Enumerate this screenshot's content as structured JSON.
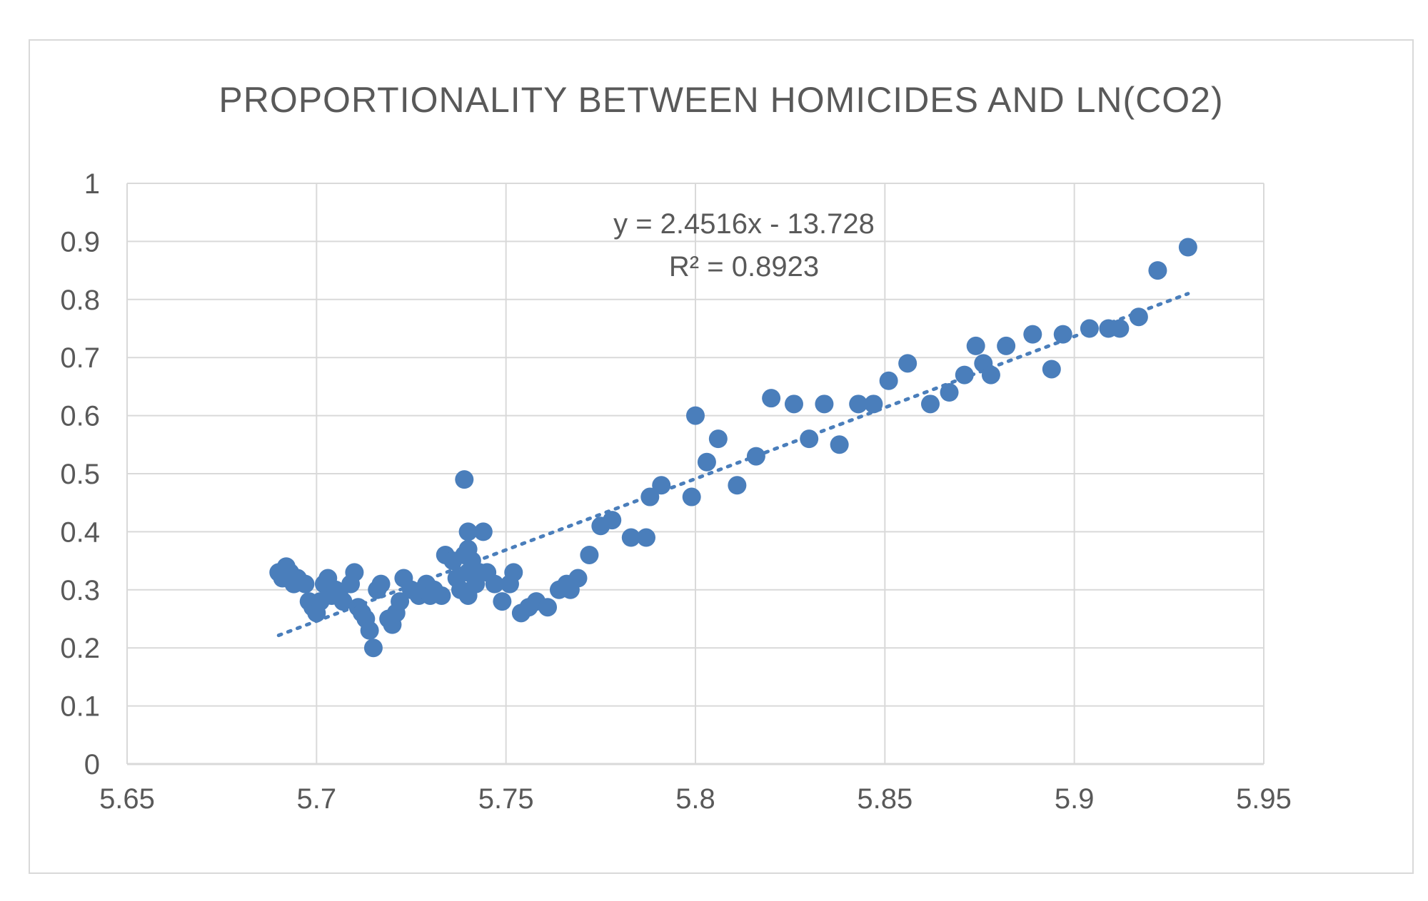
{
  "chart_data": {
    "type": "scatter",
    "title": "PROPORTIONALITY BETWEEN HOMICIDES AND LN(CO2)",
    "xlabel": "",
    "ylabel": "",
    "xlim": [
      5.65,
      5.95
    ],
    "ylim": [
      0,
      1
    ],
    "x_ticks": [
      "5.65",
      "5.7",
      "5.75",
      "5.8",
      "5.85",
      "5.9",
      "5.95"
    ],
    "y_ticks": [
      "0",
      "0.1",
      "0.2",
      "0.3",
      "0.4",
      "0.5",
      "0.6",
      "0.7",
      "0.8",
      "0.9",
      "1"
    ],
    "grid": true,
    "legend": "none",
    "marker_color": "#4a7ebb",
    "trendline": {
      "type": "linear",
      "slope": 2.4516,
      "intercept": -13.728,
      "x_range": [
        5.69,
        5.93
      ],
      "equation_label": "y = 2.4516x - 13.728",
      "r2_label": "R² = 0.8923"
    },
    "points": [
      [
        5.69,
        0.33
      ],
      [
        5.691,
        0.32
      ],
      [
        5.692,
        0.34
      ],
      [
        5.693,
        0.33
      ],
      [
        5.694,
        0.31
      ],
      [
        5.695,
        0.32
      ],
      [
        5.697,
        0.31
      ],
      [
        5.698,
        0.28
      ],
      [
        5.699,
        0.27
      ],
      [
        5.7,
        0.26
      ],
      [
        5.701,
        0.28
      ],
      [
        5.702,
        0.31
      ],
      [
        5.703,
        0.32
      ],
      [
        5.704,
        0.29
      ],
      [
        5.705,
        0.3
      ],
      [
        5.706,
        0.29
      ],
      [
        5.707,
        0.28
      ],
      [
        5.709,
        0.31
      ],
      [
        5.71,
        0.33
      ],
      [
        5.711,
        0.27
      ],
      [
        5.712,
        0.26
      ],
      [
        5.713,
        0.25
      ],
      [
        5.714,
        0.23
      ],
      [
        5.715,
        0.2
      ],
      [
        5.716,
        0.3
      ],
      [
        5.717,
        0.31
      ],
      [
        5.719,
        0.25
      ],
      [
        5.72,
        0.24
      ],
      [
        5.721,
        0.26
      ],
      [
        5.722,
        0.28
      ],
      [
        5.723,
        0.32
      ],
      [
        5.725,
        0.3
      ],
      [
        5.727,
        0.29
      ],
      [
        5.728,
        0.3
      ],
      [
        5.729,
        0.31
      ],
      [
        5.73,
        0.29
      ],
      [
        5.731,
        0.3
      ],
      [
        5.733,
        0.29
      ],
      [
        5.734,
        0.36
      ],
      [
        5.736,
        0.35
      ],
      [
        5.737,
        0.32
      ],
      [
        5.738,
        0.3
      ],
      [
        5.739,
        0.36
      ],
      [
        5.739,
        0.49
      ],
      [
        5.74,
        0.4
      ],
      [
        5.74,
        0.37
      ],
      [
        5.74,
        0.33
      ],
      [
        5.74,
        0.29
      ],
      [
        5.741,
        0.35
      ],
      [
        5.742,
        0.31
      ],
      [
        5.743,
        0.33
      ],
      [
        5.744,
        0.4
      ],
      [
        5.745,
        0.33
      ],
      [
        5.747,
        0.31
      ],
      [
        5.749,
        0.28
      ],
      [
        5.751,
        0.31
      ],
      [
        5.752,
        0.33
      ],
      [
        5.754,
        0.26
      ],
      [
        5.756,
        0.27
      ],
      [
        5.758,
        0.28
      ],
      [
        5.761,
        0.27
      ],
      [
        5.764,
        0.3
      ],
      [
        5.766,
        0.31
      ],
      [
        5.767,
        0.3
      ],
      [
        5.769,
        0.32
      ],
      [
        5.772,
        0.36
      ],
      [
        5.775,
        0.41
      ],
      [
        5.778,
        0.42
      ],
      [
        5.783,
        0.39
      ],
      [
        5.787,
        0.39
      ],
      [
        5.788,
        0.46
      ],
      [
        5.791,
        0.48
      ],
      [
        5.799,
        0.46
      ],
      [
        5.8,
        0.6
      ],
      [
        5.803,
        0.52
      ],
      [
        5.806,
        0.56
      ],
      [
        5.811,
        0.48
      ],
      [
        5.816,
        0.53
      ],
      [
        5.82,
        0.63
      ],
      [
        5.826,
        0.62
      ],
      [
        5.83,
        0.56
      ],
      [
        5.834,
        0.62
      ],
      [
        5.838,
        0.55
      ],
      [
        5.843,
        0.62
      ],
      [
        5.847,
        0.62
      ],
      [
        5.851,
        0.66
      ],
      [
        5.856,
        0.69
      ],
      [
        5.862,
        0.62
      ],
      [
        5.867,
        0.64
      ],
      [
        5.871,
        0.67
      ],
      [
        5.874,
        0.72
      ],
      [
        5.876,
        0.69
      ],
      [
        5.878,
        0.67
      ],
      [
        5.882,
        0.72
      ],
      [
        5.889,
        0.74
      ],
      [
        5.894,
        0.68
      ],
      [
        5.897,
        0.74
      ],
      [
        5.904,
        0.75
      ],
      [
        5.909,
        0.75
      ],
      [
        5.912,
        0.75
      ],
      [
        5.917,
        0.77
      ],
      [
        5.922,
        0.85
      ],
      [
        5.93,
        0.89
      ]
    ]
  }
}
